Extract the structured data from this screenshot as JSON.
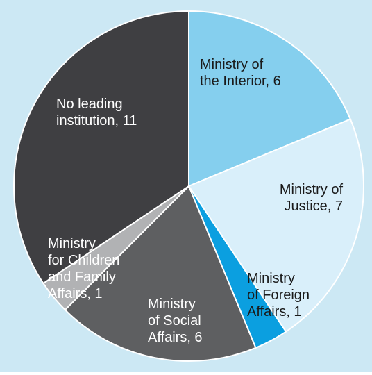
{
  "chart_data": {
    "type": "pie",
    "title": "",
    "background": "#cce8f4",
    "start_angle_deg": 0,
    "direction": "clockwise",
    "slices": [
      {
        "label": [
          "Ministry of",
          "the Interior, 6"
        ],
        "value": 6,
        "color": "#85cfee",
        "text_color": "#1a1a1a"
      },
      {
        "label": [
          "Ministry of",
          "Justice, 7"
        ],
        "value": 7,
        "color": "#d9effa",
        "text_color": "#1a1a1a"
      },
      {
        "label": [
          "Ministry",
          "of Foreign",
          "Affairs, 1"
        ],
        "value": 1,
        "color": "#0b9fe0",
        "text_color": "#1a1a1a"
      },
      {
        "label": [
          "Ministry",
          "of Social",
          "Affairs, 6"
        ],
        "value": 6,
        "color": "#5e5f61",
        "text_color": "#ffffff"
      },
      {
        "label": [
          "Ministry",
          "for Children",
          "and Family",
          "Affairs, 1"
        ],
        "value": 1,
        "color": "#b1b2b4",
        "text_color": "#ffffff"
      },
      {
        "label": [
          "No leading",
          "institution, 11"
        ],
        "value": 11,
        "color": "#3f3f42",
        "text_color": "#ffffff"
      }
    ]
  }
}
